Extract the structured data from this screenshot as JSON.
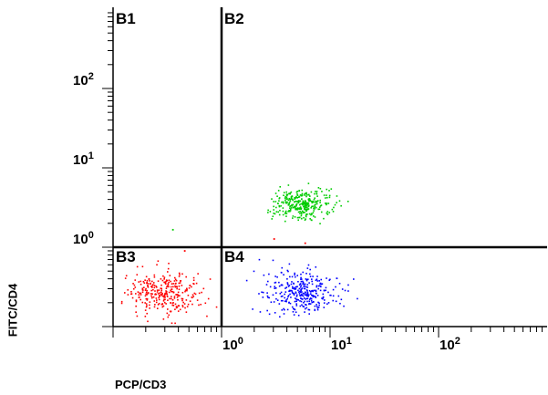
{
  "chart_data": {
    "type": "scatter",
    "title": "",
    "xlabel": "PCP/CD3",
    "ylabel": "FITC/CD4",
    "x_scale": "log",
    "y_scale": "log",
    "xlim": [
      0.1,
      1000
    ],
    "ylim": [
      0.1,
      1000
    ],
    "x_ticks": [
      {
        "value": 1,
        "base": "10",
        "exp": "0"
      },
      {
        "value": 10,
        "base": "10",
        "exp": "1"
      },
      {
        "value": 100,
        "base": "10",
        "exp": "2"
      }
    ],
    "y_ticks": [
      {
        "value": 1,
        "base": "10",
        "exp": "0"
      },
      {
        "value": 10,
        "base": "10",
        "exp": "1"
      },
      {
        "value": 100,
        "base": "10",
        "exp": "2"
      }
    ],
    "quadrant_gate": {
      "x": 1,
      "y": 1
    },
    "quadrants": [
      {
        "label": "B1",
        "corner": "top-left"
      },
      {
        "label": "B2",
        "corner": "top-right"
      },
      {
        "label": "B3",
        "corner": "bottom-left"
      },
      {
        "label": "B4",
        "corner": "bottom-right"
      }
    ],
    "series": [
      {
        "color": "#ff0000",
        "center": [
          0.28,
          0.27
        ],
        "spread": [
          0.17,
          0.13
        ],
        "n": 320
      },
      {
        "color": "#0000ff",
        "center": [
          5.5,
          0.27
        ],
        "spread": [
          0.17,
          0.13
        ],
        "n": 330
      },
      {
        "color": "#00cc00",
        "center": [
          5.5,
          3.6
        ],
        "spread": [
          0.14,
          0.1
        ],
        "n": 330
      }
    ],
    "outliers": [
      {
        "x": 0.35,
        "y": 1.7,
        "color": "#00cc00"
      },
      {
        "x": 0.45,
        "y": 0.92,
        "color": "#ff0000"
      },
      {
        "x": 5.8,
        "y": 1.15,
        "color": "#ff0000"
      },
      {
        "x": 3.0,
        "y": 1.3,
        "color": "#ff0000"
      }
    ]
  }
}
